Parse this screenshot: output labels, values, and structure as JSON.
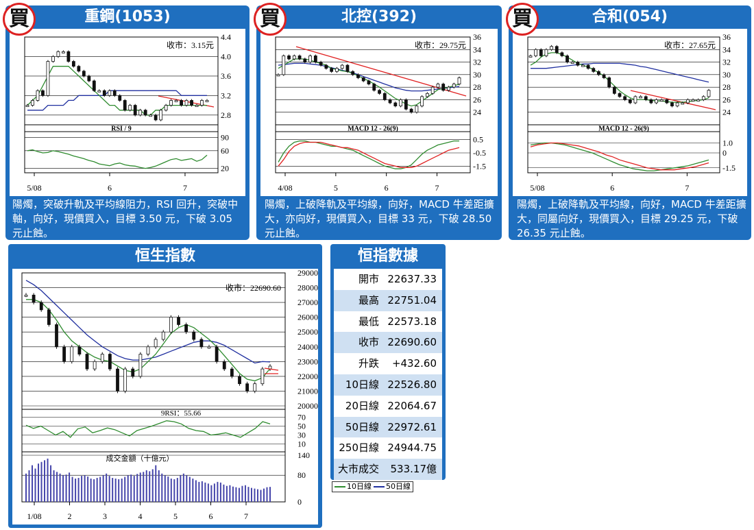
{
  "colors": {
    "panel": "#1f6fbf",
    "ma10": "#2e8b2e",
    "ma50": "#1f2f9f",
    "trend": "#e02020",
    "candle": "#111111"
  },
  "chart_data": [
    {
      "type": "line",
      "id": "p1",
      "title": "重鋼(1053)",
      "badge": "買",
      "close_label": "收市：3.15元",
      "x_ticks": [
        "5/08",
        "6",
        "7"
      ],
      "ylim": [
        2.6,
        4.4
      ],
      "y_ticks": [
        "4.4",
        "4.0",
        "3.6",
        "3.2",
        "2.8"
      ],
      "price": [
        3.0,
        3.1,
        3.3,
        3.2,
        3.9,
        4.0,
        4.1,
        4.1,
        3.9,
        3.8,
        3.7,
        3.6,
        3.5,
        3.3,
        3.3,
        3.2,
        3.3,
        3.2,
        3.1,
        2.9,
        3.0,
        2.8,
        2.9,
        2.8,
        2.8,
        2.7,
        2.9,
        3.0,
        3.1,
        3.1,
        3.0,
        3.1,
        3.0,
        3.0,
        3.1,
        3.1
      ],
      "ma10": [
        3.0,
        3.1,
        3.2,
        3.4,
        3.6,
        3.8,
        3.8,
        3.8,
        3.8,
        3.7,
        3.6,
        3.5,
        3.4,
        3.3,
        3.2,
        3.1,
        3.0,
        3.0,
        2.9,
        2.9,
        2.9,
        2.9,
        2.9,
        2.8,
        2.8,
        2.9,
        2.9,
        3.0,
        3.0,
        3.0,
        3.0,
        3.0,
        3.0,
        3.0,
        3.0,
        3.0
      ],
      "ma50": [
        2.9,
        2.9,
        2.9,
        2.9,
        3.0,
        3.0,
        3.0,
        3.0,
        3.1,
        3.1,
        3.2,
        3.2,
        3.2,
        3.2,
        3.2,
        3.2,
        3.3,
        3.3,
        3.3,
        3.3,
        3.3,
        3.3,
        3.3,
        3.3,
        3.3,
        3.3,
        3.3,
        3.3,
        3.3,
        3.3,
        3.2,
        3.2,
        3.2,
        3.2,
        3.2,
        3.2
      ],
      "sub_label": "RSI / 9",
      "sub_ylim": [
        10,
        100
      ],
      "sub_ticks": [
        "90",
        "60",
        "20"
      ],
      "sub_series": [
        [
          60,
          62,
          58,
          55,
          56,
          60,
          58,
          55,
          52,
          48,
          45,
          42,
          38,
          35,
          30,
          28,
          26,
          30,
          32,
          28,
          26,
          25,
          22,
          20,
          22,
          25,
          30,
          35,
          40,
          42,
          38,
          40,
          42,
          36,
          40,
          50
        ]
      ],
      "comment": "陽燭，突破升軌及平均線阻力，RSI 回升，突破中軸，向好，現價買入，目標 3.50 元，下破 3.05 元止蝕。"
    },
    {
      "type": "line",
      "id": "p2",
      "title": "北控(392)",
      "badge": "買",
      "close_label": "收市：29.75元",
      "x_ticks": [
        "4/08",
        "5",
        "6",
        "7"
      ],
      "ylim": [
        22,
        36
      ],
      "y_ticks": [
        "36",
        "34",
        "32",
        "30",
        "28",
        "26",
        "24"
      ],
      "price": [
        30,
        33,
        32.5,
        33,
        32.5,
        32,
        33,
        32,
        31.5,
        31,
        30.5,
        31,
        31.5,
        30.5,
        30,
        29.5,
        29,
        28.5,
        27.5,
        27,
        26,
        25.5,
        25,
        26,
        24.5,
        24,
        25,
        26.5,
        27,
        28,
        28.5,
        27.5,
        28,
        28.5,
        29.5
      ],
      "ma10": [
        31,
        31.5,
        32,
        32.5,
        32.5,
        32.5,
        32.3,
        32,
        31.8,
        31.5,
        31,
        30.8,
        30.6,
        30.5,
        30.2,
        29.8,
        29.4,
        29,
        28.5,
        28,
        27.4,
        26.8,
        26.2,
        25.8,
        25.3,
        25,
        25.2,
        25.8,
        26.4,
        27,
        27.6,
        27.8,
        28,
        28.2,
        28.5
      ],
      "ma50": [
        31.5,
        31.6,
        31.7,
        31.8,
        31.8,
        31.8,
        31.7,
        31.6,
        31.5,
        31.3,
        31.1,
        30.9,
        30.7,
        30.5,
        30.3,
        30,
        29.7,
        29.4,
        29.1,
        28.8,
        28.5,
        28.2,
        27.9,
        27.7,
        27.5,
        27.4,
        27.4,
        27.4,
        27.5,
        27.6,
        27.7,
        27.8,
        27.9,
        28,
        28.1
      ],
      "sub_label": "MACD 12 - 26(9)",
      "sub_ylim": [
        -2.0,
        1.0
      ],
      "sub_ticks": [
        "0.5",
        "-0.5",
        "-1.5"
      ],
      "sub_series": [
        [
          -1.2,
          -0.5,
          0.0,
          0.3,
          0.4,
          0.4,
          0.3,
          0.3,
          0.2,
          0.1,
          0.0,
          0.0,
          -0.1,
          -0.2,
          -0.3,
          -0.5,
          -0.7,
          -0.9,
          -1.1,
          -1.3,
          -1.5,
          -1.6,
          -1.7,
          -1.7,
          -1.6,
          -1.4,
          -1.0,
          -0.6,
          -0.3,
          -0.1,
          0.1,
          0.2,
          0.3,
          0.4,
          0.4
        ],
        [
          -1.5,
          -1.0,
          -0.4,
          0.0,
          0.2,
          0.3,
          0.3,
          0.3,
          0.3,
          0.2,
          0.1,
          0.0,
          -0.1,
          -0.1,
          -0.2,
          -0.3,
          -0.5,
          -0.7,
          -0.9,
          -1.1,
          -1.3,
          -1.4,
          -1.5,
          -1.6,
          -1.6,
          -1.6,
          -1.5,
          -1.3,
          -1.1,
          -0.9,
          -0.7,
          -0.5,
          -0.3,
          -0.2,
          -0.1
        ]
      ],
      "comment": "陽燭，上破降軌及平均線，向好，MACD 牛差距擴大，亦向好，現價買入，目標 33 元，下破 28.50 元止蝕。"
    },
    {
      "type": "line",
      "id": "p3",
      "title": "合和(054)",
      "badge": "買",
      "close_label": "收市：27.65元",
      "x_ticks": [
        "5/08",
        "6",
        "7"
      ],
      "ylim": [
        22,
        36
      ],
      "y_ticks": [
        "36",
        "34",
        "32",
        "30",
        "28",
        "26",
        "24"
      ],
      "price": [
        33,
        34,
        33,
        34,
        34.5,
        33.5,
        33,
        32,
        32,
        31.5,
        31.5,
        31,
        30.5,
        30,
        29.5,
        28,
        27,
        26.5,
        26,
        25.5,
        26.5,
        26.5,
        26,
        25.5,
        26,
        26,
        25.5,
        25,
        25.5,
        25.5,
        26,
        26,
        26,
        26.5,
        27.5
      ],
      "ma10": [
        31.5,
        32,
        32.8,
        33.3,
        33.5,
        33.5,
        33.2,
        32.8,
        32.3,
        31.8,
        31.5,
        31.2,
        30.8,
        30.3,
        29.8,
        29,
        28.2,
        27.4,
        26.8,
        26.3,
        26,
        26,
        26,
        25.9,
        25.8,
        25.8,
        25.7,
        25.6,
        25.6,
        25.6,
        25.7,
        25.8,
        25.9,
        26,
        26.3
      ],
      "ma50": [
        31,
        31,
        31,
        31,
        31.1,
        31.2,
        31.3,
        31.4,
        31.5,
        31.6,
        31.7,
        31.7,
        31.8,
        31.8,
        31.8,
        31.8,
        31.8,
        31.8,
        31.7,
        31.6,
        31.5,
        31.3,
        31.2,
        31,
        30.8,
        30.6,
        30.4,
        30.2,
        30,
        29.8,
        29.6,
        29.4,
        29.2,
        29,
        28.8
      ],
      "sub_label": "MACD 12 - 26(9)",
      "sub_ylim": [
        -2.0,
        2.0
      ],
      "sub_ticks": [
        "1.0",
        "0",
        "-1.5"
      ],
      "sub_series": [
        [
          0.8,
          0.9,
          1.0,
          1.0,
          0.9,
          0.8,
          0.6,
          0.4,
          0.2,
          0.0,
          -0.3,
          -0.6,
          -0.9,
          -1.2,
          -1.4,
          -1.6,
          -1.7,
          -1.8,
          -1.8,
          -1.7,
          -1.6,
          -1.5,
          -1.4,
          -1.3,
          -1.1,
          -0.9,
          -0.7
        ],
        [
          0.6,
          0.8,
          0.9,
          1.0,
          1.0,
          0.9,
          0.8,
          0.7,
          0.5,
          0.3,
          0.1,
          -0.2,
          -0.4,
          -0.7,
          -0.9,
          -1.1,
          -1.3,
          -1.5,
          -1.6,
          -1.7,
          -1.7,
          -1.7,
          -1.6,
          -1.5,
          -1.4,
          -1.2,
          -1.0
        ]
      ],
      "comment": "陽燭，上破降軌及平均線，向好，MACD 牛差距擴大，同屬向好，現價買入，目標 29.25 元，下破 26.35 元止蝕。"
    },
    {
      "type": "line",
      "id": "hsi",
      "title": "恒生指數",
      "close_label": "收市：22690.60",
      "x_ticks": [
        "1/08",
        "2",
        "3",
        "4",
        "5",
        "6",
        "7"
      ],
      "ylim": [
        20000,
        29000
      ],
      "y_ticks": [
        "29000",
        "28000",
        "27000",
        "26000",
        "25000",
        "24000",
        "23000",
        "22000",
        "21000",
        "20000"
      ],
      "price": [
        27500,
        27000,
        26500,
        25500,
        24000,
        23000,
        24000,
        23500,
        22500,
        23000,
        23500,
        22500,
        21000,
        22500,
        22000,
        23500,
        24000,
        24500,
        25000,
        26000,
        25500,
        25000,
        24500,
        24000,
        24000,
        23000,
        22500,
        22000,
        21500,
        21000,
        21500,
        22500,
        22690
      ],
      "ma10": [
        27200,
        27200,
        27000,
        26500,
        25800,
        25000,
        24400,
        24000,
        23600,
        23300,
        23100,
        23000,
        22700,
        22400,
        22300,
        22500,
        23000,
        23500,
        24200,
        24900,
        25300,
        25500,
        25300,
        24900,
        24500,
        24000,
        23400,
        22800,
        22200,
        21800,
        21700,
        21900,
        22527
      ],
      "ma50": [
        28500,
        28200,
        27800,
        27300,
        26800,
        26300,
        25800,
        25300,
        24800,
        24400,
        24000,
        23700,
        23400,
        23200,
        23100,
        23100,
        23200,
        23300,
        23500,
        23700,
        23900,
        24100,
        24300,
        24400,
        24400,
        24300,
        24100,
        23800,
        23500,
        23200,
        22900,
        23000,
        22973
      ],
      "rsi_label": "9RSI：55.66",
      "rsi_ylim": [
        0,
        80
      ],
      "rsi_ticks": [
        "70",
        "50",
        "30",
        "10"
      ],
      "rsi": [
        52,
        45,
        50,
        40,
        30,
        38,
        25,
        44,
        48,
        35,
        40,
        46,
        42,
        35,
        28,
        40,
        45,
        50,
        56,
        62,
        60,
        55,
        45,
        40,
        38,
        30,
        32,
        35,
        30,
        25,
        35,
        45,
        60,
        55
      ],
      "vol_label": "成交金額（十億元）",
      "vol_ylim": [
        0,
        140
      ],
      "vol_ticks": [
        "140",
        "80",
        "0"
      ],
      "volume": [
        85,
        95,
        110,
        100,
        115,
        120,
        125,
        130,
        110,
        95,
        90,
        85,
        80,
        82,
        88,
        75,
        70,
        72,
        78,
        80,
        76,
        70,
        68,
        72,
        75,
        80,
        85,
        78,
        72,
        70,
        68,
        70,
        75,
        80,
        82,
        78,
        84,
        88,
        90,
        95,
        92,
        98,
        110,
        95,
        85,
        80,
        76,
        70,
        68,
        72,
        80,
        85,
        80,
        75,
        70,
        65,
        60,
        62,
        58,
        55,
        50,
        55,
        60,
        58,
        52,
        48,
        50,
        46,
        44,
        42,
        48,
        50,
        45,
        42,
        40,
        38,
        36,
        40,
        44,
        45
      ],
      "legend": [
        "10日線",
        "50日線"
      ]
    }
  ],
  "table": {
    "title": "恒指數據",
    "rows": [
      {
        "k": "開市",
        "v": "22637.33"
      },
      {
        "k": "最高",
        "v": "22751.04"
      },
      {
        "k": "最低",
        "v": "22573.18"
      },
      {
        "k": "收市",
        "v": "22690.60"
      },
      {
        "k": "升跌",
        "v": "+432.60"
      },
      {
        "k": "10日線",
        "v": "22526.80"
      },
      {
        "k": "20日線",
        "v": "22064.67"
      },
      {
        "k": "50日線",
        "v": "22972.61"
      },
      {
        "k": "250日線",
        "v": "24944.75"
      },
      {
        "k": "大市成交",
        "v": "533.17億"
      }
    ]
  }
}
